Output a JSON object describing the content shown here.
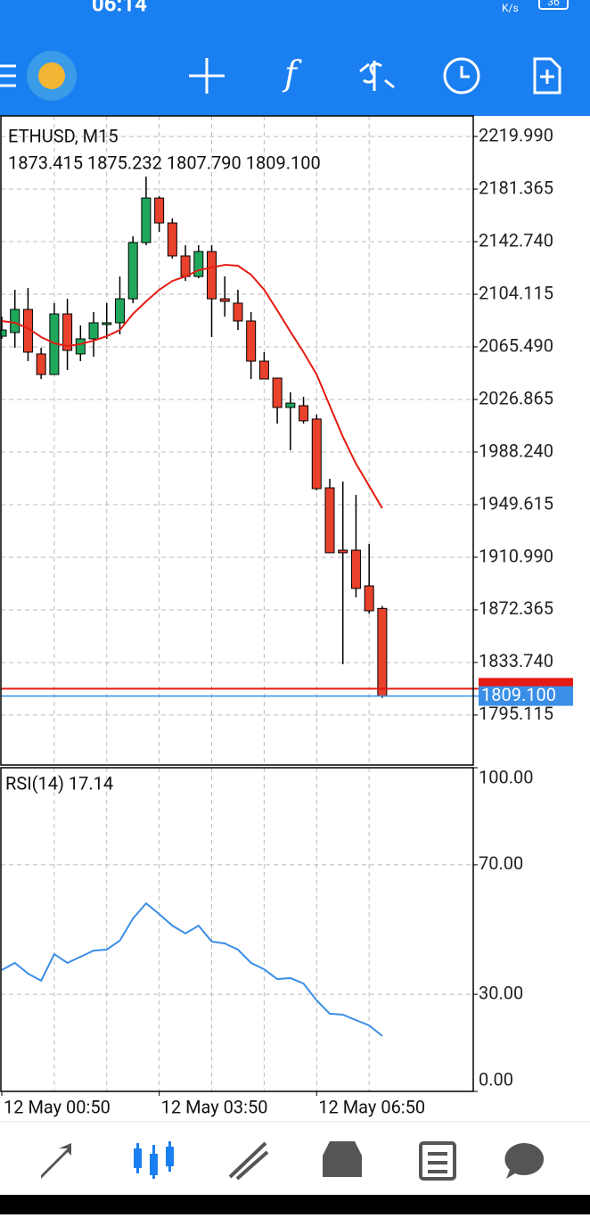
{
  "status_bar": {
    "time": "06:14",
    "speed_unit": "K/s",
    "battery": "36"
  },
  "toolbar": {
    "function_icon": "f"
  },
  "chart_data": [
    {
      "type": "candlestick",
      "title": "ETHUSD, M15",
      "subtitle": "1873.415 1875.232 1807.790 1809.100",
      "categories": [
        "12 May 00:50",
        null,
        null,
        null,
        null,
        null,
        null,
        null,
        null,
        null,
        null,
        null,
        "12 May 03:50",
        null,
        null,
        null,
        null,
        null,
        null,
        null,
        null,
        null,
        null,
        null,
        "12 May 06:50",
        null,
        null,
        null,
        null,
        null
      ],
      "open": [
        2073.3,
        2076.0,
        2093.0,
        2060.3,
        2045.2,
        2089.7,
        2060.3,
        2071.4,
        2082.5,
        2083.2,
        2100.8,
        2142.1,
        2174.8,
        2156.5,
        2132.3,
        2117.2,
        2135.5,
        2100.8,
        2097.6,
        2084.5,
        2055.0,
        2042.6,
        2021.0,
        2022.3,
        2012.5,
        1962.0,
        1916.2,
        1916.2,
        1890.0,
        1873.415
      ],
      "high": [
        2087.7,
        2107.4,
        2108.7,
        2064.8,
        2097.6,
        2100.8,
        2081.2,
        2091.0,
        2097.6,
        2117.2,
        2146.7,
        2190.5,
        2176.1,
        2159.8,
        2140.1,
        2140.1,
        2140.1,
        2117.2,
        2107.4,
        2091.0,
        2061.6,
        2042.6,
        2032.1,
        2028.8,
        2015.7,
        1968.6,
        1966.6,
        1956.8,
        1920.8,
        1875.232
      ],
      "low": [
        2071.4,
        2064.8,
        2055.0,
        2041.9,
        2045.2,
        2048.5,
        2055.0,
        2058.3,
        2071.4,
        2074.7,
        2097.6,
        2140.1,
        2150.0,
        2130.3,
        2113.9,
        2115.9,
        2072.7,
        2087.7,
        2077.9,
        2041.9,
        2041.9,
        2009.2,
        1989.5,
        2009.2,
        1960.1,
        1914.3,
        1832.4,
        1881.6,
        1869.7,
        1807.79
      ],
      "close": [
        2077.9,
        2093.0,
        2061.6,
        2045.2,
        2089.7,
        2062.9,
        2071.4,
        2083.2,
        2083.2,
        2100.8,
        2142.1,
        2174.8,
        2156.5,
        2132.3,
        2117.2,
        2135.5,
        2100.8,
        2098.9,
        2084.5,
        2055.0,
        2041.9,
        2021.0,
        2024.2,
        2011.2,
        1961.4,
        1914.3,
        1914.3,
        1888.1,
        1871.7,
        1809.1
      ],
      "last_price_label": "1809.100",
      "ask": 1814.5,
      "up_color": "#1fa85c",
      "down_color": "#e8412c",
      "moving_average": {
        "color": "#e31b12",
        "values": [
          2084.5,
          2083.2,
          2079.2,
          2072.7,
          2068.1,
          2066.1,
          2067.5,
          2070.1,
          2073.3,
          2077.9,
          2089.7,
          2098.9,
          2107.4,
          2113.9,
          2117.2,
          2121.8,
          2123.8,
          2125.7,
          2125.1,
          2118.5,
          2107.4,
          2092.3,
          2076.6,
          2061.6,
          2045.2,
          2022.3,
          1999.4,
          1979.7,
          1963.4,
          1947.0
        ]
      },
      "ylim": [
        1758.4,
        2235.1
      ],
      "yticks": [
        {
          "value": 2219.99,
          "label": "2219.990"
        },
        2181.365,
        {
          "value": 2142.74,
          "label": "2142.740"
        },
        2104.115,
        {
          "value": 2065.49,
          "label": "2065.490"
        },
        2026.865,
        {
          "value": 1988.24,
          "label": "1988.240"
        },
        1949.615,
        {
          "value": 1910.99,
          "label": "1910.990"
        },
        1872.365,
        {
          "value": 1833.74,
          "label": "1833.740"
        },
        1795.115
      ],
      "grid": true
    },
    {
      "type": "line",
      "title": "RSI(14) 17.14",
      "color": "#3a8ee6",
      "values": [
        37.5,
        39.7,
        36.4,
        34.2,
        42.4,
        39.7,
        41.6,
        43.5,
        43.8,
        46.6,
        53.4,
        58.1,
        54.8,
        51.2,
        48.8,
        51.2,
        46.3,
        45.7,
        43.8,
        39.7,
        37.7,
        34.7,
        35.0,
        33.3,
        28.1,
        24.0,
        23.7,
        22.0,
        20.4,
        17.14
      ],
      "ylim": [
        0,
        100
      ],
      "yticks": [
        {
          "value": 100,
          "label": "100.00"
        },
        {
          "value": 70,
          "label": "70.00"
        },
        {
          "value": 30,
          "label": "30.00"
        },
        {
          "value": 0,
          "label": "0.00"
        }
      ],
      "grid": true
    }
  ]
}
